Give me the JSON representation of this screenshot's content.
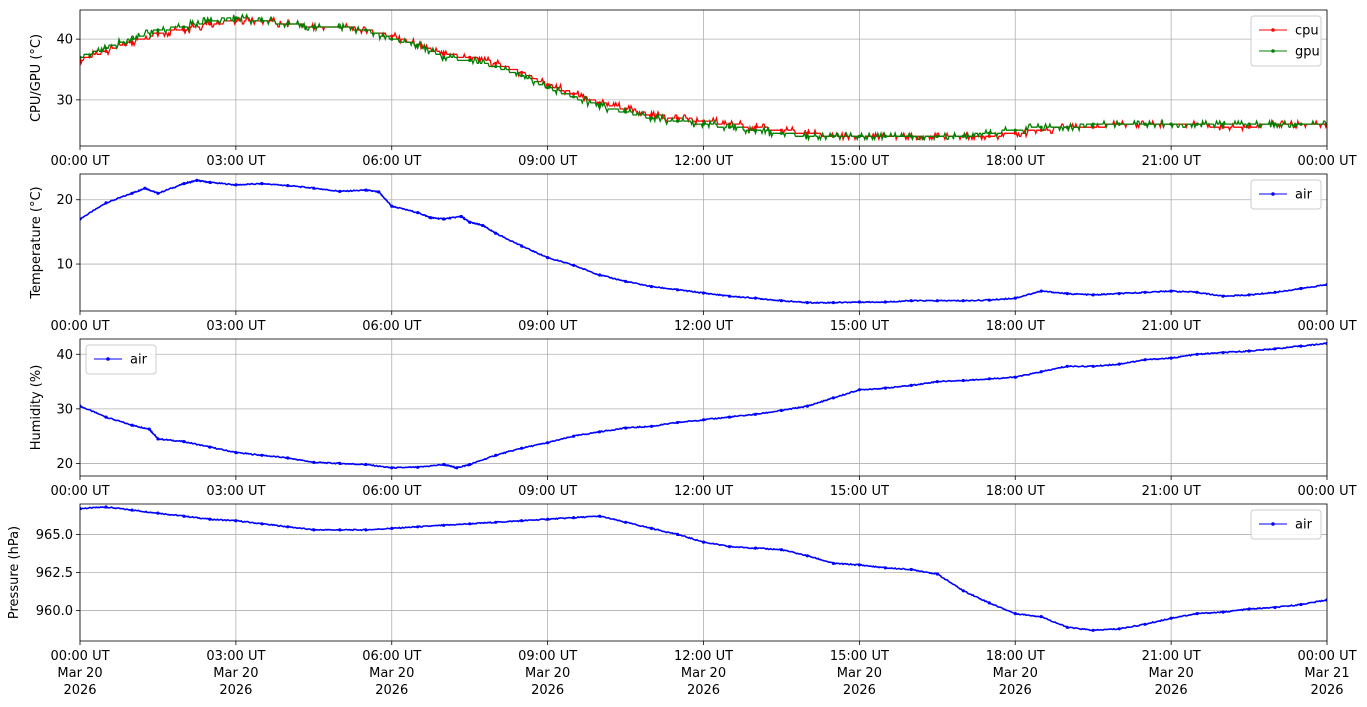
{
  "chart_data": [
    {
      "type": "line",
      "ylabel": "CPU/GPU (°C)",
      "ylim": [
        22.4,
        44.8
      ],
      "yticks": [
        30,
        40
      ],
      "ytick_labels": [
        "30",
        "40"
      ],
      "xlim": [
        "2026-03-20T00:00",
        "2026-03-21T00:00"
      ],
      "xtick_labels": [
        "00:00 UT",
        "03:00 UT",
        "06:00 UT",
        "09:00 UT",
        "12:00 UT",
        "15:00 UT",
        "18:00 UT",
        "21:00 UT",
        "00:00 UT"
      ],
      "grid": true,
      "legend": "top-right",
      "series": [
        {
          "name": "cpu",
          "color": "#ff0000",
          "x": [
            "2026-03-20T00:00",
            "2026-03-20T00:30",
            "2026-03-20T01:00",
            "2026-03-20T01:30",
            "2026-03-20T02:00",
            "2026-03-20T02:30",
            "2026-03-20T03:00",
            "2026-03-20T03:30",
            "2026-03-20T04:00",
            "2026-03-20T04:30",
            "2026-03-20T05:00",
            "2026-03-20T05:30",
            "2026-03-20T06:00",
            "2026-03-20T06:30",
            "2026-03-20T07:00",
            "2026-03-20T07:30",
            "2026-03-20T08:00",
            "2026-03-20T08:30",
            "2026-03-20T09:00",
            "2026-03-20T09:30",
            "2026-03-20T10:00",
            "2026-03-20T10:30",
            "2026-03-20T11:00",
            "2026-03-20T11:30",
            "2026-03-20T12:00",
            "2026-03-20T12:30",
            "2026-03-20T13:00",
            "2026-03-20T13:30",
            "2026-03-20T14:00",
            "2026-03-20T14:30",
            "2026-03-20T15:00",
            "2026-03-20T15:30",
            "2026-03-20T16:00",
            "2026-03-20T16:30",
            "2026-03-20T17:00",
            "2026-03-20T17:30",
            "2026-03-20T18:00",
            "2026-03-20T18:30",
            "2026-03-20T19:00",
            "2026-03-20T19:30",
            "2026-03-20T20:00",
            "2026-03-20T20:30",
            "2026-03-20T21:00",
            "2026-03-20T21:30",
            "2026-03-20T22:00",
            "2026-03-20T22:30",
            "2026-03-20T23:00",
            "2026-03-20T23:30",
            "2026-03-21T00:00"
          ],
          "values": [
            36.5,
            38,
            39.5,
            41,
            41.5,
            42.5,
            43,
            43,
            42.5,
            42,
            42,
            41.5,
            40.5,
            39,
            37.5,
            37,
            36,
            34.5,
            32.5,
            31,
            29.5,
            28.5,
            27.5,
            27,
            26.5,
            26,
            25.5,
            25,
            24.5,
            24,
            24,
            24,
            24,
            24,
            24,
            24,
            24.5,
            25,
            25.5,
            25.5,
            26,
            26,
            26,
            26,
            25.5,
            25.5,
            26,
            26,
            26
          ]
        },
        {
          "name": "gpu",
          "color": "#008000",
          "x": [
            "2026-03-20T00:00",
            "2026-03-20T00:30",
            "2026-03-20T01:00",
            "2026-03-20T01:30",
            "2026-03-20T02:00",
            "2026-03-20T02:30",
            "2026-03-20T03:00",
            "2026-03-20T03:30",
            "2026-03-20T04:00",
            "2026-03-20T04:30",
            "2026-03-20T05:00",
            "2026-03-20T05:30",
            "2026-03-20T06:00",
            "2026-03-20T06:30",
            "2026-03-20T07:00",
            "2026-03-20T07:30",
            "2026-03-20T08:00",
            "2026-03-20T08:30",
            "2026-03-20T09:00",
            "2026-03-20T09:30",
            "2026-03-20T10:00",
            "2026-03-20T10:30",
            "2026-03-20T11:00",
            "2026-03-20T11:30",
            "2026-03-20T12:00",
            "2026-03-20T12:30",
            "2026-03-20T13:00",
            "2026-03-20T13:30",
            "2026-03-20T14:00",
            "2026-03-20T14:30",
            "2026-03-20T15:00",
            "2026-03-20T15:30",
            "2026-03-20T16:00",
            "2026-03-20T16:30",
            "2026-03-20T17:00",
            "2026-03-20T17:30",
            "2026-03-20T18:00",
            "2026-03-20T18:30",
            "2026-03-20T19:00",
            "2026-03-20T19:30",
            "2026-03-20T20:00",
            "2026-03-20T20:30",
            "2026-03-20T21:00",
            "2026-03-20T21:30",
            "2026-03-20T22:00",
            "2026-03-20T22:30",
            "2026-03-20T23:00",
            "2026-03-20T23:30",
            "2026-03-21T00:00"
          ],
          "values": [
            37,
            38.5,
            40,
            41.5,
            42,
            43,
            43.5,
            43,
            42.5,
            42,
            42,
            41.5,
            40,
            39,
            37,
            36.5,
            35.5,
            34,
            32,
            30.5,
            29,
            28,
            27,
            26.5,
            26,
            25.5,
            25,
            24.5,
            24,
            24,
            24,
            24,
            24,
            24,
            24,
            24.5,
            25,
            25.5,
            25.5,
            26,
            26,
            26,
            26,
            26,
            26,
            26,
            26,
            26,
            26
          ]
        }
      ]
    },
    {
      "type": "line",
      "ylabel": "Temperature (°C)",
      "ylim": [
        2.7,
        24.0
      ],
      "yticks": [
        10,
        20
      ],
      "ytick_labels": [
        "10",
        "20"
      ],
      "xlim": [
        "2026-03-20T00:00",
        "2026-03-21T00:00"
      ],
      "xtick_labels": [
        "00:00 UT",
        "03:00 UT",
        "06:00 UT",
        "09:00 UT",
        "12:00 UT",
        "15:00 UT",
        "18:00 UT",
        "21:00 UT",
        "00:00 UT"
      ],
      "grid": true,
      "legend": "top-right",
      "series": [
        {
          "name": "air",
          "color": "#0000ff",
          "x": [
            "2026-03-20T00:00",
            "2026-03-20T00:30",
            "2026-03-20T01:00",
            "2026-03-20T01:15",
            "2026-03-20T01:30",
            "2026-03-20T02:00",
            "2026-03-20T02:15",
            "2026-03-20T02:30",
            "2026-03-20T03:00",
            "2026-03-20T03:30",
            "2026-03-20T04:00",
            "2026-03-20T04:30",
            "2026-03-20T05:00",
            "2026-03-20T05:30",
            "2026-03-20T05:45",
            "2026-03-20T06:00",
            "2026-03-20T06:30",
            "2026-03-20T06:45",
            "2026-03-20T07:00",
            "2026-03-20T07:20",
            "2026-03-20T07:30",
            "2026-03-20T07:45",
            "2026-03-20T08:00",
            "2026-03-20T08:30",
            "2026-03-20T09:00",
            "2026-03-20T09:30",
            "2026-03-20T10:00",
            "2026-03-20T10:30",
            "2026-03-20T11:00",
            "2026-03-20T11:30",
            "2026-03-20T12:00",
            "2026-03-20T12:30",
            "2026-03-20T13:00",
            "2026-03-20T13:30",
            "2026-03-20T14:00",
            "2026-03-20T14:30",
            "2026-03-20T15:00",
            "2026-03-20T15:30",
            "2026-03-20T16:00",
            "2026-03-20T16:30",
            "2026-03-20T17:00",
            "2026-03-20T17:30",
            "2026-03-20T18:00",
            "2026-03-20T18:30",
            "2026-03-20T19:00",
            "2026-03-20T19:30",
            "2026-03-20T20:00",
            "2026-03-20T20:30",
            "2026-03-20T21:00",
            "2026-03-20T21:30",
            "2026-03-20T22:00",
            "2026-03-20T22:30",
            "2026-03-20T23:00",
            "2026-03-20T23:30",
            "2026-03-21T00:00"
          ],
          "values": [
            17,
            19.5,
            21,
            21.8,
            21,
            22.5,
            23,
            22.7,
            22.3,
            22.5,
            22.2,
            21.8,
            21.3,
            21.5,
            21.2,
            19,
            18,
            17.2,
            17,
            17.4,
            16.5,
            16,
            14.8,
            12.8,
            11,
            9.8,
            8.3,
            7.3,
            6.5,
            6,
            5.5,
            5,
            4.7,
            4.3,
            4.0,
            4.0,
            4.1,
            4.1,
            4.3,
            4.3,
            4.3,
            4.4,
            4.7,
            5.8,
            5.4,
            5.2,
            5.4,
            5.6,
            5.8,
            5.6,
            5.0,
            5.2,
            5.6,
            6.2,
            6.8
          ]
        }
      ]
    },
    {
      "type": "line",
      "ylabel": "Humidity (%)",
      "ylim": [
        17.7,
        42.8
      ],
      "yticks": [
        20,
        30,
        40
      ],
      "ytick_labels": [
        "20",
        "30",
        "40"
      ],
      "xlim": [
        "2026-03-20T00:00",
        "2026-03-21T00:00"
      ],
      "xtick_labels": [
        "00:00 UT",
        "03:00 UT",
        "06:00 UT",
        "09:00 UT",
        "12:00 UT",
        "15:00 UT",
        "18:00 UT",
        "21:00 UT",
        "00:00 UT"
      ],
      "grid": true,
      "legend": "top-left",
      "series": [
        {
          "name": "air",
          "color": "#0000ff",
          "x": [
            "2026-03-20T00:00",
            "2026-03-20T00:30",
            "2026-03-20T01:00",
            "2026-03-20T01:20",
            "2026-03-20T01:30",
            "2026-03-20T02:00",
            "2026-03-20T02:30",
            "2026-03-20T03:00",
            "2026-03-20T03:30",
            "2026-03-20T04:00",
            "2026-03-20T04:30",
            "2026-03-20T05:00",
            "2026-03-20T05:30",
            "2026-03-20T06:00",
            "2026-03-20T06:30",
            "2026-03-20T07:00",
            "2026-03-20T07:15",
            "2026-03-20T07:30",
            "2026-03-20T08:00",
            "2026-03-20T08:30",
            "2026-03-20T09:00",
            "2026-03-20T09:30",
            "2026-03-20T10:00",
            "2026-03-20T10:30",
            "2026-03-20T11:00",
            "2026-03-20T11:30",
            "2026-03-20T12:00",
            "2026-03-20T12:30",
            "2026-03-20T13:00",
            "2026-03-20T13:30",
            "2026-03-20T14:00",
            "2026-03-20T14:30",
            "2026-03-20T15:00",
            "2026-03-20T15:30",
            "2026-03-20T16:00",
            "2026-03-20T16:30",
            "2026-03-20T17:00",
            "2026-03-20T17:30",
            "2026-03-20T18:00",
            "2026-03-20T18:30",
            "2026-03-20T19:00",
            "2026-03-20T19:30",
            "2026-03-20T20:00",
            "2026-03-20T20:30",
            "2026-03-20T21:00",
            "2026-03-20T21:30",
            "2026-03-20T22:00",
            "2026-03-20T22:30",
            "2026-03-20T23:00",
            "2026-03-20T23:30",
            "2026-03-21T00:00"
          ],
          "values": [
            30.5,
            28.5,
            27,
            26.3,
            24.5,
            24,
            23,
            22,
            21.5,
            21,
            20.2,
            20,
            19.8,
            19.2,
            19.3,
            19.8,
            19.2,
            19.8,
            21.5,
            22.8,
            23.8,
            25,
            25.8,
            26.5,
            26.8,
            27.5,
            28,
            28.5,
            29,
            29.7,
            30.5,
            32,
            33.5,
            33.8,
            34.3,
            35,
            35.2,
            35.5,
            35.8,
            36.8,
            37.8,
            37.8,
            38.2,
            39,
            39.3,
            40,
            40.3,
            40.6,
            41,
            41.5,
            42
          ]
        }
      ]
    },
    {
      "type": "line",
      "ylabel": "Pressure (hPa)",
      "ylim": [
        958.0,
        967.0
      ],
      "yticks": [
        960.0,
        962.5,
        965.0
      ],
      "ytick_labels": [
        "960.0",
        "962.5",
        "965.0"
      ],
      "xlim": [
        "2026-03-20T00:00",
        "2026-03-21T00:00"
      ],
      "xtick_labels": [
        "00:00 UT",
        "03:00 UT",
        "06:00 UT",
        "09:00 UT",
        "12:00 UT",
        "15:00 UT",
        "18:00 UT",
        "21:00 UT",
        "00:00 UT"
      ],
      "xtick_dates": [
        "Mar 20",
        "Mar 20",
        "Mar 20",
        "Mar 20",
        "Mar 20",
        "Mar 20",
        "Mar 20",
        "Mar 20",
        "Mar 21"
      ],
      "xtick_years": [
        "2026",
        "2026",
        "2026",
        "2026",
        "2026",
        "2026",
        "2026",
        "2026",
        "2026"
      ],
      "grid": true,
      "legend": "top-right",
      "series": [
        {
          "name": "air",
          "color": "#0000ff",
          "x": [
            "2026-03-20T00:00",
            "2026-03-20T00:30",
            "2026-03-20T01:00",
            "2026-03-20T01:30",
            "2026-03-20T02:00",
            "2026-03-20T02:30",
            "2026-03-20T03:00",
            "2026-03-20T03:30",
            "2026-03-20T04:00",
            "2026-03-20T04:30",
            "2026-03-20T05:00",
            "2026-03-20T05:30",
            "2026-03-20T06:00",
            "2026-03-20T06:30",
            "2026-03-20T07:00",
            "2026-03-20T07:30",
            "2026-03-20T08:00",
            "2026-03-20T08:30",
            "2026-03-20T09:00",
            "2026-03-20T09:30",
            "2026-03-20T10:00",
            "2026-03-20T10:30",
            "2026-03-20T11:00",
            "2026-03-20T11:30",
            "2026-03-20T12:00",
            "2026-03-20T12:30",
            "2026-03-20T13:00",
            "2026-03-20T13:30",
            "2026-03-20T14:00",
            "2026-03-20T14:30",
            "2026-03-20T15:00",
            "2026-03-20T15:30",
            "2026-03-20T16:00",
            "2026-03-20T16:30",
            "2026-03-20T17:00",
            "2026-03-20T17:30",
            "2026-03-20T18:00",
            "2026-03-20T18:30",
            "2026-03-20T19:00",
            "2026-03-20T19:30",
            "2026-03-20T20:00",
            "2026-03-20T20:30",
            "2026-03-20T21:00",
            "2026-03-20T21:30",
            "2026-03-20T22:00",
            "2026-03-20T22:30",
            "2026-03-20T23:00",
            "2026-03-20T23:30",
            "2026-03-21T00:00"
          ],
          "values": [
            966.7,
            966.8,
            966.6,
            966.4,
            966.2,
            966.0,
            965.9,
            965.7,
            965.5,
            965.3,
            965.3,
            965.3,
            965.4,
            965.5,
            965.6,
            965.7,
            965.8,
            965.9,
            966.0,
            966.1,
            966.2,
            965.8,
            965.4,
            965.0,
            964.5,
            964.2,
            964.1,
            964.0,
            963.6,
            963.1,
            963.0,
            962.8,
            962.7,
            962.4,
            961.3,
            960.5,
            959.8,
            959.6,
            958.9,
            958.7,
            958.8,
            959.1,
            959.5,
            959.8,
            959.9,
            960.1,
            960.2,
            960.4,
            960.7
          ]
        }
      ]
    }
  ]
}
